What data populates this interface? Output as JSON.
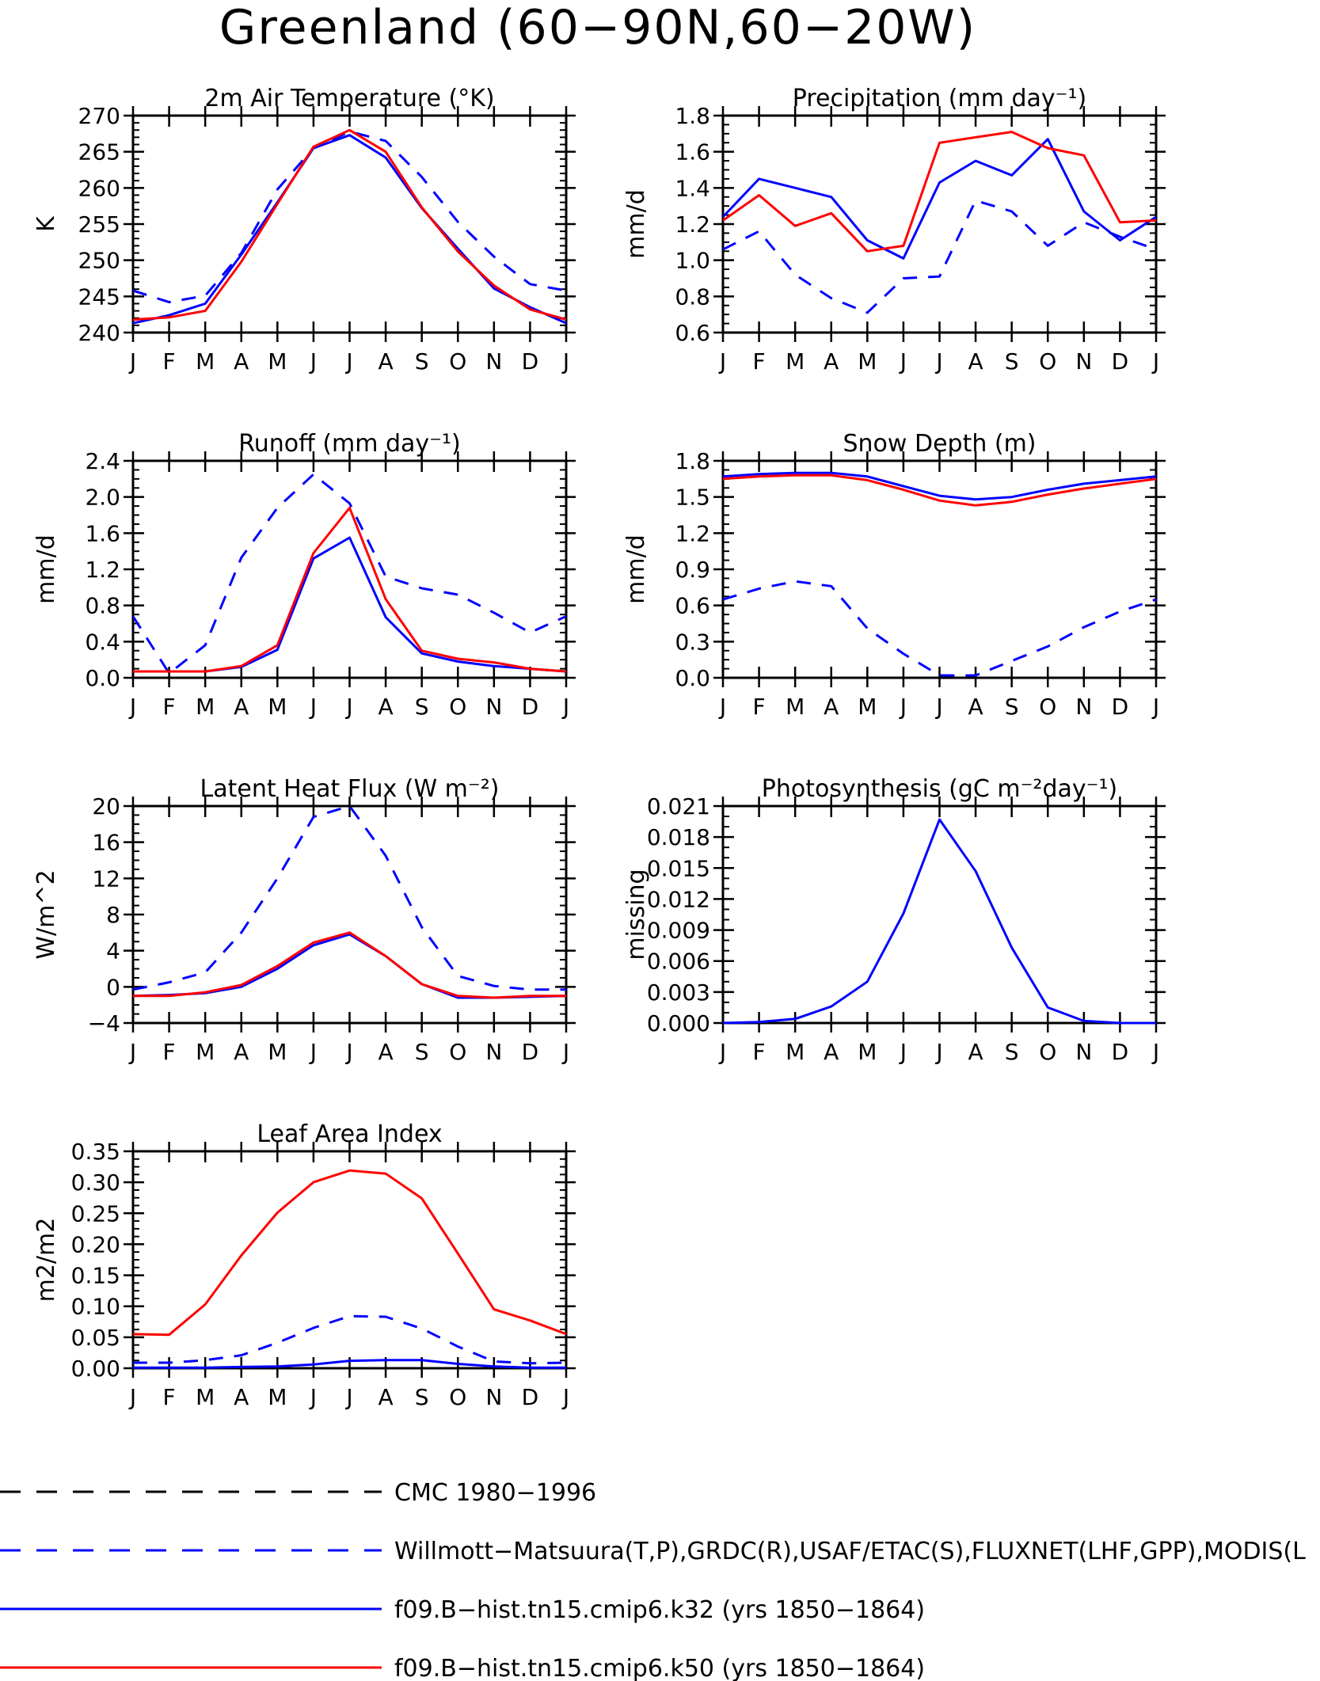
{
  "page": {
    "title": "Greenland (60−90N,60−20W)"
  },
  "months": [
    "J",
    "F",
    "M",
    "A",
    "M",
    "J",
    "J",
    "A",
    "S",
    "O",
    "N",
    "D",
    "J"
  ],
  "colors": {
    "obs": "#0000ff",
    "k32": "#0000ff",
    "k50": "#ff0000",
    "cmc": "#000000"
  },
  "legend": [
    {
      "label": "CMC 1980−1996",
      "color": "#000000",
      "dash": true
    },
    {
      "label": "Willmott−Matsuura(T,P),GRDC(R),USAF/ETAC(S),FLUXNET(LHF,GPP),MODIS(L",
      "color": "#0000ff",
      "dash": true
    },
    {
      "label": "f09.B−hist.tn15.cmip6.k32 (yrs 1850−1864)",
      "color": "#0000ff",
      "dash": false
    },
    {
      "label": "f09.B−hist.tn15.cmip6.k50 (yrs 1850−1864)",
      "color": "#ff0000",
      "dash": false
    }
  ],
  "chart_data": [
    {
      "type": "line",
      "title": "2m Air Temperature (°K)",
      "ylabel": "K",
      "ylim": [
        240,
        270
      ],
      "yticks": [
        240,
        245,
        250,
        255,
        260,
        265,
        270
      ],
      "yminor": 1,
      "ytick_labels": [
        "240",
        "245",
        "250",
        "255",
        "260",
        "265",
        "270"
      ],
      "x": [
        "J",
        "F",
        "M",
        "A",
        "M",
        "J",
        "J",
        "A",
        "S",
        "O",
        "N",
        "D",
        "J"
      ],
      "series": [
        {
          "key": "obs",
          "dash": true,
          "values": [
            245.8,
            244.2,
            245.1,
            251.0,
            259.8,
            265.5,
            267.8,
            266.5,
            261.5,
            255.3,
            250.5,
            246.7,
            245.8
          ]
        },
        {
          "key": "k32",
          "dash": false,
          "values": [
            241.3,
            242.4,
            244.0,
            250.8,
            258.0,
            265.5,
            267.3,
            264.2,
            257.2,
            251.6,
            246.1,
            243.5,
            241.3
          ]
        },
        {
          "key": "k50",
          "dash": false,
          "values": [
            241.8,
            242.1,
            243.0,
            249.8,
            257.8,
            265.7,
            268.0,
            265.0,
            257.3,
            251.2,
            246.5,
            243.2,
            241.8
          ]
        }
      ]
    },
    {
      "type": "line",
      "title": "Precipitation (mm day⁻¹)",
      "ylabel": "mm/d",
      "ylim": [
        0.6,
        1.8
      ],
      "yticks": [
        0.6,
        0.8,
        1.0,
        1.2,
        1.4,
        1.6,
        1.8
      ],
      "yminor": 0.05,
      "ytick_labels": [
        "0.6",
        "0.8",
        "1.0",
        "1.2",
        "1.4",
        "1.6",
        "1.8"
      ],
      "x": [
        "J",
        "F",
        "M",
        "A",
        "M",
        "J",
        "J",
        "A",
        "S",
        "O",
        "N",
        "D",
        "J"
      ],
      "series": [
        {
          "key": "obs",
          "dash": true,
          "values": [
            1.06,
            1.16,
            0.92,
            0.79,
            0.71,
            0.9,
            0.91,
            1.33,
            1.27,
            1.08,
            1.21,
            1.13,
            1.06
          ]
        },
        {
          "key": "k32",
          "dash": false,
          "values": [
            1.24,
            1.45,
            1.4,
            1.35,
            1.11,
            1.01,
            1.43,
            1.55,
            1.47,
            1.67,
            1.27,
            1.11,
            1.24
          ]
        },
        {
          "key": "k50",
          "dash": false,
          "values": [
            1.22,
            1.36,
            1.19,
            1.26,
            1.05,
            1.08,
            1.65,
            1.68,
            1.71,
            1.62,
            1.58,
            1.21,
            1.22
          ]
        }
      ]
    },
    {
      "type": "line",
      "title": "Runoff (mm day⁻¹)",
      "ylabel": "mm/d",
      "ylim": [
        0.0,
        2.4
      ],
      "yticks": [
        0.0,
        0.4,
        0.8,
        1.2,
        1.6,
        2.0,
        2.4
      ],
      "yminor": 0.1,
      "ytick_labels": [
        "0.0",
        "0.4",
        "0.8",
        "1.2",
        "1.6",
        "2.0",
        "2.4"
      ],
      "x": [
        "J",
        "F",
        "M",
        "A",
        "M",
        "J",
        "J",
        "A",
        "S",
        "O",
        "N",
        "D",
        "J"
      ],
      "series": [
        {
          "key": "obs",
          "dash": true,
          "values": [
            0.68,
            0.05,
            0.36,
            1.33,
            1.88,
            2.25,
            1.93,
            1.12,
            0.99,
            0.92,
            0.72,
            0.5,
            0.68
          ]
        },
        {
          "key": "k32",
          "dash": false,
          "values": [
            0.07,
            0.07,
            0.07,
            0.12,
            0.31,
            1.32,
            1.55,
            0.67,
            0.27,
            0.18,
            0.13,
            0.1,
            0.07
          ]
        },
        {
          "key": "k50",
          "dash": false,
          "values": [
            0.07,
            0.07,
            0.07,
            0.13,
            0.36,
            1.38,
            1.88,
            0.87,
            0.3,
            0.21,
            0.17,
            0.1,
            0.07
          ]
        }
      ]
    },
    {
      "type": "line",
      "title": "Snow Depth (m)",
      "ylabel": "mm/d",
      "ylim": [
        0.0,
        1.8
      ],
      "yticks": [
        0.0,
        0.3,
        0.6,
        0.9,
        1.2,
        1.5,
        1.8
      ],
      "yminor": 0.075,
      "ytick_labels": [
        "0.0",
        "0.3",
        "0.6",
        "0.9",
        "1.2",
        "1.5",
        "1.8"
      ],
      "x": [
        "J",
        "F",
        "M",
        "A",
        "M",
        "J",
        "J",
        "A",
        "S",
        "O",
        "N",
        "D",
        "J"
      ],
      "series": [
        {
          "key": "cmc",
          "dash": true,
          "values": [
            0.0,
            0.0,
            0.0,
            0.0,
            0.0,
            0.0,
            0.0,
            0.0,
            0.0,
            0.0,
            0.0,
            0.0,
            0.0
          ]
        },
        {
          "key": "obs",
          "dash": true,
          "values": [
            0.65,
            0.74,
            0.8,
            0.76,
            0.41,
            0.2,
            0.02,
            0.02,
            0.14,
            0.26,
            0.42,
            0.55,
            0.65
          ]
        },
        {
          "key": "k32",
          "dash": false,
          "values": [
            1.67,
            1.69,
            1.7,
            1.7,
            1.67,
            1.59,
            1.51,
            1.48,
            1.5,
            1.56,
            1.61,
            1.64,
            1.67
          ]
        },
        {
          "key": "k50",
          "dash": false,
          "values": [
            1.65,
            1.67,
            1.68,
            1.68,
            1.64,
            1.56,
            1.47,
            1.43,
            1.46,
            1.52,
            1.57,
            1.61,
            1.65
          ]
        }
      ]
    },
    {
      "type": "line",
      "title": "Latent Heat Flux (W m⁻²)",
      "ylabel": "W/m^2",
      "ylim": [
        -4,
        20
      ],
      "yticks": [
        -4,
        0,
        4,
        8,
        12,
        16,
        20
      ],
      "yminor": 1,
      "ytick_labels": [
        "−4",
        "0",
        "4",
        "8",
        "12",
        "16",
        "20"
      ],
      "x": [
        "J",
        "F",
        "M",
        "A",
        "M",
        "J",
        "J",
        "A",
        "S",
        "O",
        "N",
        "D",
        "J"
      ],
      "series": [
        {
          "key": "obs",
          "dash": true,
          "values": [
            -0.3,
            0.5,
            1.6,
            6.0,
            12.0,
            18.8,
            20.0,
            14.5,
            6.6,
            1.2,
            0.1,
            -0.3,
            -0.3
          ]
        },
        {
          "key": "k32",
          "dash": false,
          "values": [
            -1.0,
            -0.9,
            -0.7,
            0.0,
            2.0,
            4.6,
            5.8,
            3.4,
            0.3,
            -1.2,
            -1.2,
            -1.1,
            -1.0
          ]
        },
        {
          "key": "k50",
          "dash": false,
          "values": [
            -1.0,
            -1.0,
            -0.6,
            0.2,
            2.3,
            4.9,
            6.0,
            3.4,
            0.3,
            -1.0,
            -1.2,
            -1.0,
            -1.0
          ]
        }
      ]
    },
    {
      "type": "line",
      "title": "Photosynthesis (gC m⁻²day⁻¹)",
      "ylabel": "missing",
      "ylim": [
        0.0,
        0.021
      ],
      "yticks": [
        0.0,
        0.003,
        0.006,
        0.009,
        0.012,
        0.015,
        0.018,
        0.021
      ],
      "yminor": 0.001,
      "ytick_labels": [
        "0.000",
        "0.003",
        "0.006",
        "0.009",
        "0.012",
        "0.015",
        "0.018",
        "0.021"
      ],
      "x": [
        "J",
        "F",
        "M",
        "A",
        "M",
        "J",
        "J",
        "A",
        "S",
        "O",
        "N",
        "D",
        "J"
      ],
      "series": [
        {
          "key": "k32",
          "dash": false,
          "values": [
            0.0,
            0.0001,
            0.0004,
            0.0016,
            0.004,
            0.0106,
            0.0197,
            0.0147,
            0.0073,
            0.0015,
            0.0002,
            0.0,
            0.0
          ]
        }
      ]
    },
    {
      "type": "line",
      "title": "Leaf Area Index",
      "ylabel": "m2/m2",
      "ylim": [
        0.0,
        0.35
      ],
      "yticks": [
        0.0,
        0.05,
        0.1,
        0.15,
        0.2,
        0.25,
        0.3,
        0.35
      ],
      "yminor": 0.0125,
      "ytick_labels": [
        "0.00",
        "0.05",
        "0.10",
        "0.15",
        "0.20",
        "0.25",
        "0.30",
        "0.35"
      ],
      "x": [
        "J",
        "F",
        "M",
        "A",
        "M",
        "J",
        "J",
        "A",
        "S",
        "O",
        "N",
        "D",
        "J"
      ],
      "series": [
        {
          "key": "obs",
          "dash": true,
          "values": [
            0.009,
            0.009,
            0.013,
            0.021,
            0.041,
            0.065,
            0.084,
            0.083,
            0.064,
            0.035,
            0.011,
            0.008,
            0.009
          ]
        },
        {
          "key": "k32",
          "dash": false,
          "values": [
            0.001,
            0.001,
            0.001,
            0.002,
            0.003,
            0.006,
            0.012,
            0.013,
            0.013,
            0.007,
            0.003,
            0.001,
            0.001
          ]
        },
        {
          "key": "k50",
          "dash": false,
          "values": [
            0.055,
            0.054,
            0.103,
            0.182,
            0.251,
            0.3,
            0.319,
            0.314,
            0.274,
            0.185,
            0.095,
            0.077,
            0.055
          ]
        }
      ]
    }
  ]
}
